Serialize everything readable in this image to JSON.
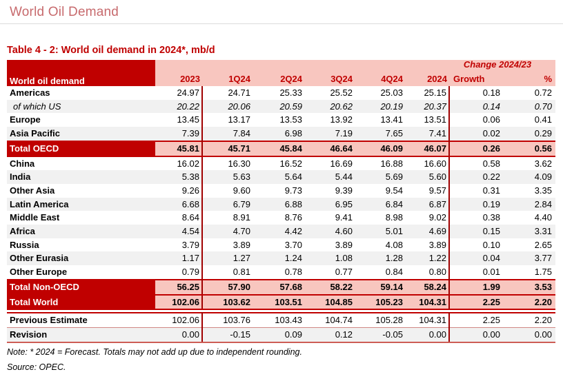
{
  "page": {
    "title": "World Oil Demand",
    "caption": "Table 4 - 2: World oil demand in 2024*, mb/d",
    "note": "Note: * 2024 = Forecast. Totals may not add up due to independent rounding.",
    "source": "Source: OPEC."
  },
  "colors": {
    "accent_dark_red": "#C00000",
    "header_pink": "#F8C6BF",
    "title_rose": "#C76A6D",
    "stripe_gray": "#F1F1F1",
    "divider_maroon": "#A00000"
  },
  "table": {
    "label_header": "World oil demand",
    "change_header": "Change 2024/23",
    "columns": [
      "2023",
      "1Q24",
      "2Q24",
      "3Q24",
      "4Q24",
      "2024",
      "Growth",
      "%"
    ],
    "rows": [
      {
        "label": "Americas",
        "type": "region",
        "shade": false,
        "values": [
          "24.97",
          "24.71",
          "25.33",
          "25.52",
          "25.03",
          "25.15",
          "0.18",
          "0.72"
        ]
      },
      {
        "label": "of which US",
        "type": "sub",
        "shade": true,
        "values": [
          "20.22",
          "20.06",
          "20.59",
          "20.62",
          "20.19",
          "20.37",
          "0.14",
          "0.70"
        ]
      },
      {
        "label": "Europe",
        "type": "region",
        "shade": false,
        "values": [
          "13.45",
          "13.17",
          "13.53",
          "13.92",
          "13.41",
          "13.51",
          "0.06",
          "0.41"
        ]
      },
      {
        "label": "Asia Pacific",
        "type": "region",
        "shade": true,
        "values": [
          "7.39",
          "7.84",
          "6.98",
          "7.19",
          "7.65",
          "7.41",
          "0.02",
          "0.29"
        ]
      },
      {
        "label": "Total OECD",
        "type": "total",
        "shade": false,
        "values": [
          "45.81",
          "45.71",
          "45.84",
          "46.64",
          "46.09",
          "46.07",
          "0.26",
          "0.56"
        ]
      },
      {
        "label": "China",
        "type": "region",
        "shade": false,
        "values": [
          "16.02",
          "16.30",
          "16.52",
          "16.69",
          "16.88",
          "16.60",
          "0.58",
          "3.62"
        ]
      },
      {
        "label": "India",
        "type": "region",
        "shade": true,
        "values": [
          "5.38",
          "5.63",
          "5.64",
          "5.44",
          "5.69",
          "5.60",
          "0.22",
          "4.09"
        ]
      },
      {
        "label": "Other Asia",
        "type": "region",
        "shade": false,
        "values": [
          "9.26",
          "9.60",
          "9.73",
          "9.39",
          "9.54",
          "9.57",
          "0.31",
          "3.35"
        ]
      },
      {
        "label": "Latin America",
        "type": "region",
        "shade": true,
        "values": [
          "6.68",
          "6.79",
          "6.88",
          "6.95",
          "6.84",
          "6.87",
          "0.19",
          "2.84"
        ]
      },
      {
        "label": "Middle East",
        "type": "region",
        "shade": false,
        "values": [
          "8.64",
          "8.91",
          "8.76",
          "9.41",
          "8.98",
          "9.02",
          "0.38",
          "4.40"
        ]
      },
      {
        "label": "Africa",
        "type": "region",
        "shade": true,
        "values": [
          "4.54",
          "4.70",
          "4.42",
          "4.60",
          "5.01",
          "4.69",
          "0.15",
          "3.31"
        ]
      },
      {
        "label": "Russia",
        "type": "region",
        "shade": false,
        "values": [
          "3.79",
          "3.89",
          "3.70",
          "3.89",
          "4.08",
          "3.89",
          "0.10",
          "2.65"
        ]
      },
      {
        "label": "Other Eurasia",
        "type": "region",
        "shade": true,
        "values": [
          "1.17",
          "1.27",
          "1.24",
          "1.08",
          "1.28",
          "1.22",
          "0.04",
          "3.77"
        ]
      },
      {
        "label": "Other Europe",
        "type": "region",
        "shade": false,
        "values": [
          "0.79",
          "0.81",
          "0.78",
          "0.77",
          "0.84",
          "0.80",
          "0.01",
          "1.75"
        ]
      },
      {
        "label": "Total Non-OECD",
        "type": "total",
        "shade": false,
        "values": [
          "56.25",
          "57.90",
          "57.68",
          "58.22",
          "59.14",
          "58.24",
          "1.99",
          "3.53"
        ]
      },
      {
        "label": "Total World",
        "type": "total",
        "shade": false,
        "gap_after": true,
        "values": [
          "102.06",
          "103.62",
          "103.51",
          "104.85",
          "105.23",
          "104.31",
          "2.25",
          "2.20"
        ]
      },
      {
        "label": "Previous Estimate",
        "type": "prev",
        "shade": false,
        "values": [
          "102.06",
          "103.76",
          "103.43",
          "104.74",
          "105.28",
          "104.31",
          "2.25",
          "2.20"
        ]
      },
      {
        "label": "Revision",
        "type": "rev",
        "shade": true,
        "values": [
          "0.00",
          "-0.15",
          "0.09",
          "0.12",
          "-0.05",
          "0.00",
          "0.00",
          "0.00"
        ]
      }
    ]
  }
}
